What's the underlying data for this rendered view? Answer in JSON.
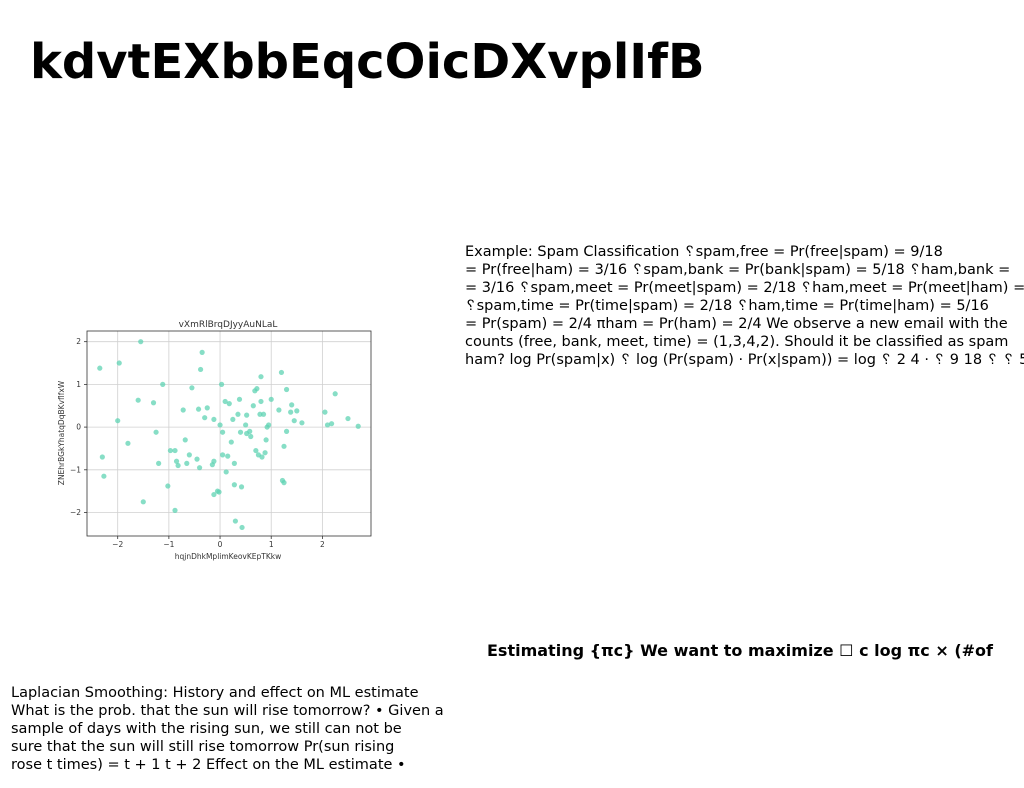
{
  "page": {
    "title": "kdvtEXbbEqcOicDXvplIfB"
  },
  "spam_block": {
    "lines": [
      "Example: Spam Classification ␦spam,free = Pr(free|spam) = 9/18",
      "= Pr(free|ham) = 3/16 ␦spam,bank = Pr(bank|spam) = 5/18 ␦ham,bank =",
      "= 3/16 ␦spam,meet = Pr(meet|spam) = 2/18 ␦ham,meet = Pr(meet|ham) =",
      "␦spam,time = Pr(time|spam) = 2/18 ␦ham,time = Pr(time|ham) = 5/16",
      "= Pr(spam) = 2/4 πham = Pr(ham) = 2/4 We observe a new email with the",
      "counts (free, bank, meet, time) = (1,3,4,2). Should it be classified as spam",
      "ham? log Pr(spam|x) ␦ log (Pr(spam) · Pr(x|spam)) = log ␦ 2 4 · ␦ 9 18 ␦ ␦ 5"
    ]
  },
  "estimating": {
    "heading": "Estimating {πc} We want to maximize ☐ c log πc × (#of"
  },
  "laplace_block": {
    "lines": [
      "Laplacian Smoothing: History and effect on ML estimate",
      "What is the prob. that the sun will rise tomorrow? • Given a",
      "sample of days with the rising sun, we still can not be",
      "sure that the sun will still rise tomorrow Pr(sun rising",
      "rose t times) = t + 1 t + 2 Effect on the ML estimate •"
    ]
  },
  "chart_data": {
    "type": "scatter",
    "title": "vXmRlBrqDJyyAuNLaL",
    "xlabel": "hqjnDhkMplimKeovKEpTKkw",
    "ylabel": "ZNEhrBGkYhatqDqBKvflfxW",
    "xlim": [
      -2.6,
      2.95
    ],
    "ylim": [
      -2.55,
      2.25
    ],
    "xticks": [
      -2,
      -1,
      0,
      1,
      2
    ],
    "yticks": [
      -2,
      -1,
      0,
      1,
      2
    ],
    "xtick_labels": [
      "−2",
      "−1",
      "0",
      "1",
      "2"
    ],
    "ytick_labels": [
      "−2",
      "−1",
      "0",
      "1",
      "2"
    ],
    "grid": true,
    "point_color": "#5fd3b3",
    "points": [
      [
        -2.35,
        1.38
      ],
      [
        -2.3,
        -0.7
      ],
      [
        -2.27,
        -1.15
      ],
      [
        -1.97,
        1.5
      ],
      [
        -1.55,
        2.0
      ],
      [
        -1.6,
        0.63
      ],
      [
        -1.3,
        0.57
      ],
      [
        -1.12,
        1.0
      ],
      [
        -1.25,
        -0.12
      ],
      [
        -1.2,
        -0.85
      ],
      [
        -1.02,
        -1.38
      ],
      [
        -0.97,
        -0.55
      ],
      [
        -0.88,
        -0.55
      ],
      [
        -0.85,
        -0.8
      ],
      [
        -0.82,
        -0.9
      ],
      [
        -0.88,
        -1.95
      ],
      [
        -1.5,
        -1.75
      ],
      [
        -1.8,
        -0.38
      ],
      [
        -2.0,
        0.15
      ],
      [
        -0.72,
        0.4
      ],
      [
        -0.68,
        -0.3
      ],
      [
        -0.65,
        -0.85
      ],
      [
        -0.6,
        -0.65
      ],
      [
        -0.55,
        0.92
      ],
      [
        -0.45,
        -0.75
      ],
      [
        -0.42,
        0.42
      ],
      [
        -0.35,
        1.75
      ],
      [
        -0.38,
        1.35
      ],
      [
        -0.4,
        -0.95
      ],
      [
        -0.3,
        0.22
      ],
      [
        -0.25,
        0.45
      ],
      [
        -0.12,
        0.18
      ],
      [
        -0.12,
        -0.8
      ],
      [
        -0.15,
        -0.88
      ],
      [
        -0.12,
        -1.58
      ],
      [
        -0.05,
        -1.5
      ],
      [
        -0.02,
        -1.52
      ],
      [
        0.0,
        0.05
      ],
      [
        0.03,
        1.0
      ],
      [
        0.05,
        -0.12
      ],
      [
        0.05,
        -0.65
      ],
      [
        0.1,
        0.6
      ],
      [
        0.12,
        -1.05
      ],
      [
        0.15,
        -0.68
      ],
      [
        0.18,
        0.55
      ],
      [
        0.22,
        -0.35
      ],
      [
        0.25,
        0.18
      ],
      [
        0.28,
        -0.85
      ],
      [
        0.28,
        -1.35
      ],
      [
        0.3,
        -2.2
      ],
      [
        0.35,
        0.3
      ],
      [
        0.38,
        0.65
      ],
      [
        0.4,
        -0.12
      ],
      [
        0.42,
        -1.4
      ],
      [
        0.43,
        -2.35
      ],
      [
        0.5,
        0.05
      ],
      [
        0.52,
        0.28
      ],
      [
        0.52,
        -0.15
      ],
      [
        0.58,
        -0.1
      ],
      [
        0.6,
        -0.22
      ],
      [
        0.65,
        0.5
      ],
      [
        0.68,
        0.85
      ],
      [
        0.7,
        -0.55
      ],
      [
        0.72,
        0.9
      ],
      [
        0.75,
        -0.65
      ],
      [
        0.78,
        0.3
      ],
      [
        0.8,
        1.18
      ],
      [
        0.8,
        0.6
      ],
      [
        0.82,
        -0.7
      ],
      [
        0.85,
        0.3
      ],
      [
        0.88,
        -0.6
      ],
      [
        0.9,
        -0.3
      ],
      [
        0.92,
        0.0
      ],
      [
        1.0,
        0.65
      ],
      [
        1.15,
        0.4
      ],
      [
        1.2,
        1.28
      ],
      [
        1.22,
        -1.25
      ],
      [
        1.25,
        -1.3
      ],
      [
        1.25,
        -0.45
      ],
      [
        1.3,
        0.88
      ],
      [
        1.3,
        -0.1
      ],
      [
        1.38,
        0.35
      ],
      [
        1.4,
        0.52
      ],
      [
        1.45,
        0.15
      ],
      [
        1.5,
        0.38
      ],
      [
        1.6,
        0.1
      ],
      [
        2.05,
        0.35
      ],
      [
        2.1,
        0.05
      ],
      [
        2.18,
        0.08
      ],
      [
        2.25,
        0.78
      ],
      [
        2.5,
        0.2
      ],
      [
        2.7,
        0.02
      ],
      [
        0.95,
        0.05
      ]
    ]
  }
}
